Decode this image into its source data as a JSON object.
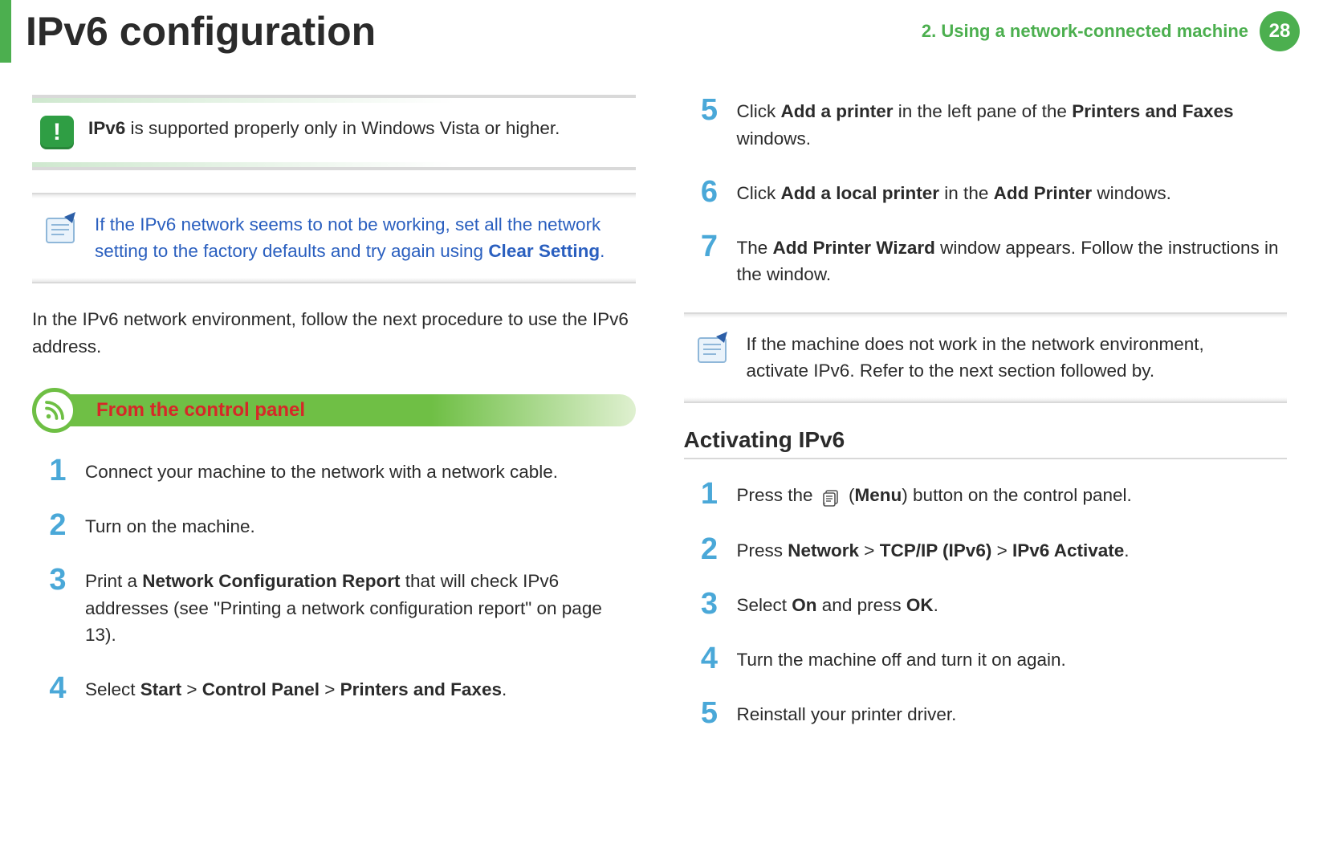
{
  "header": {
    "title": "IPv6 configuration",
    "chapter": "2.  Using a network-connected machine",
    "page_number": "28"
  },
  "colors": {
    "green": "#4caf4f",
    "step_blue": "#4aa8d8",
    "link_blue": "#2a5fbf",
    "banner_red": "#d62828"
  },
  "left": {
    "warn_prefix": "IPv6",
    "warn_rest": " is supported properly only in Windows Vista or higher.",
    "tip_1": "If the IPv6 network seems to not be working, set all the network setting to the factory defaults and try again using ",
    "tip_bold": "Clear Setting",
    "tip_2": ".",
    "intro": "In the IPv6 network environment, follow the next procedure to use the IPv6 address.",
    "section": "From the control panel",
    "steps": [
      {
        "n": "1",
        "html": "Connect your machine to the network with a network cable."
      },
      {
        "n": "2",
        "html": "Turn on the machine."
      },
      {
        "n": "3",
        "html": "Print a <b>Network Configuration Report</b> that will check IPv6 addresses (see \"Printing a network configuration report\" on page 13)."
      },
      {
        "n": "4",
        "html": "Select <b>Start</b> > <b>Control Panel</b> > <b>Printers and Faxes</b>."
      }
    ]
  },
  "right": {
    "steps_cont": [
      {
        "n": "5",
        "html": "Click <b>Add a printer</b> in the left pane of the <b>Printers and Faxes</b> windows."
      },
      {
        "n": "6",
        "html": "Click <b>Add a local printer</b> in the <b>Add Printer</b> windows."
      },
      {
        "n": "7",
        "html": "The <b>Add Printer Wizard</b> window appears. Follow the instructions in the window."
      }
    ],
    "tip": "If the machine does not work in the network environment, activate IPv6. Refer to the next section followed by.",
    "subhead": "Activating IPv6",
    "sub_steps": [
      {
        "n": "1",
        "html": "Press the {MENU_ICON} (<b>Menu</b>) button on the control panel."
      },
      {
        "n": "2",
        "html": "Press <b>Network</b> > <b>TCP/IP (IPv6)</b> > <b>IPv6 Activate</b>."
      },
      {
        "n": "3",
        "html": "Select <b>On</b> and press <b>OK</b>."
      },
      {
        "n": "4",
        "html": "Turn the machine off and turn it on again."
      },
      {
        "n": "5",
        "html": "Reinstall your printer driver."
      }
    ]
  }
}
